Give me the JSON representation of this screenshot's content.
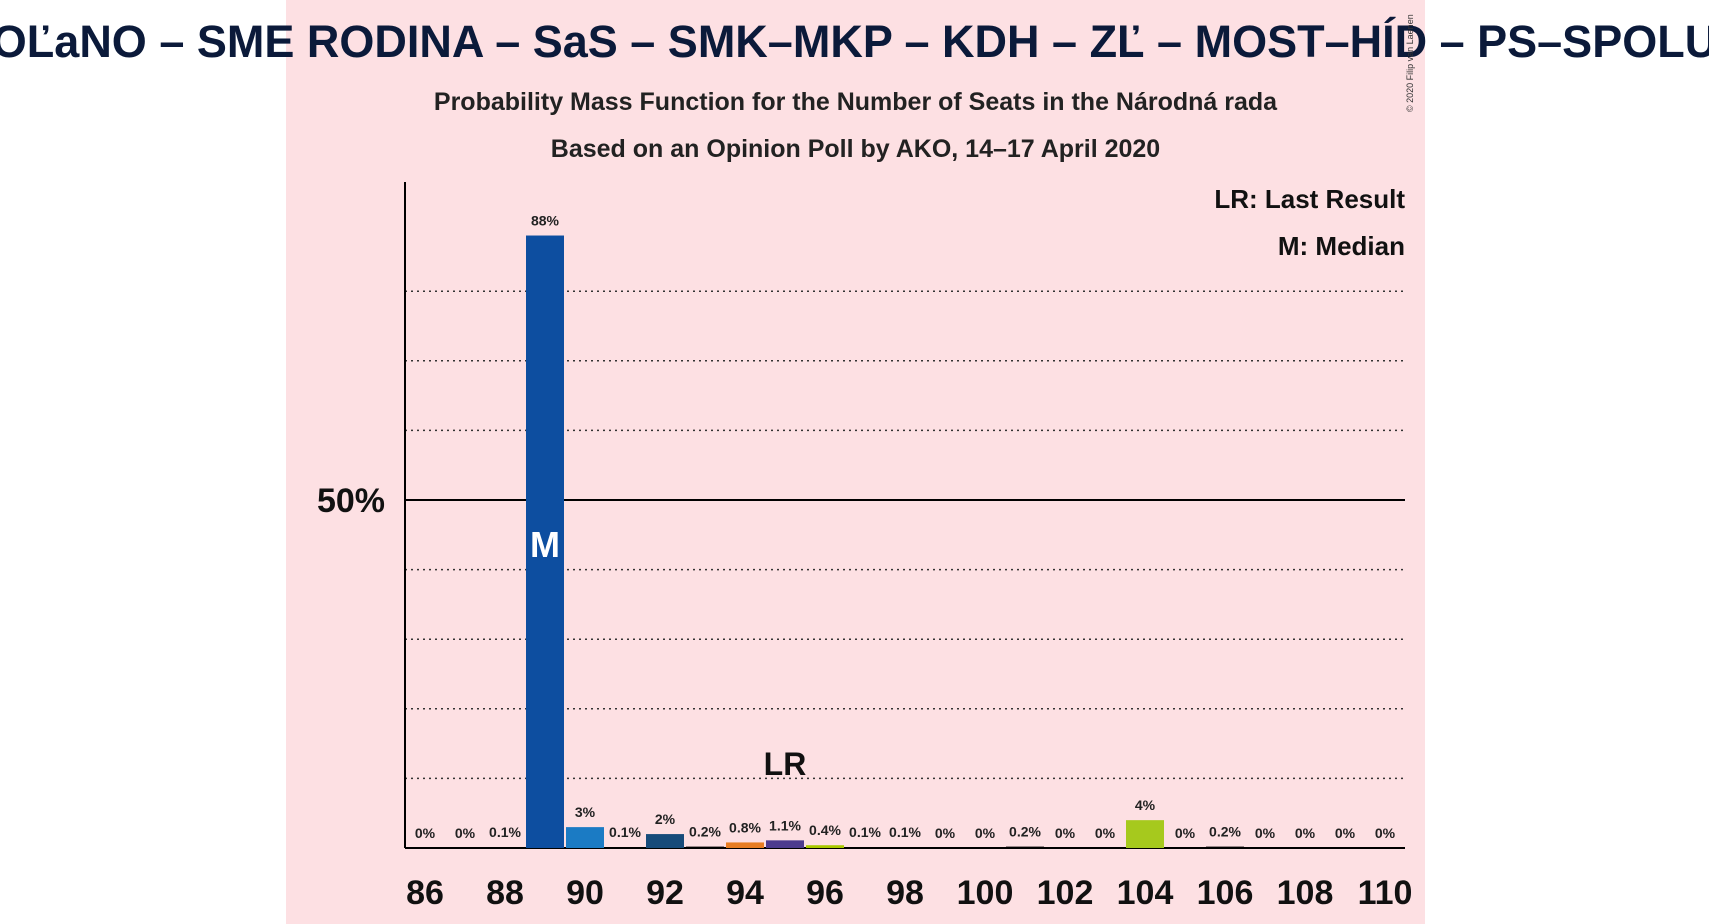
{
  "title": "OĽaNO – SME RODINA – SaS – SMK–MKP – KDH – ZĽ – MOST–HÍD – PS–SPOLU",
  "subtitle1": "Probability Mass Function for the Number of Seats in the Národná rada",
  "subtitle2": "Based on an Opinion Poll by AKO, 14–17 April 2020",
  "legend": {
    "lr": "LR: Last Result",
    "m": "M: Median"
  },
  "copyright": "© 2020 Filip van Laenen",
  "colors": {
    "background": "#fde0e3",
    "axis": "#000000",
    "grid": "#333333"
  },
  "chart_data": {
    "type": "bar",
    "x": [
      86,
      87,
      88,
      89,
      90,
      91,
      92,
      93,
      94,
      95,
      96,
      97,
      98,
      99,
      100,
      101,
      102,
      103,
      104,
      105,
      106,
      107,
      108,
      109,
      110
    ],
    "values": [
      0,
      0,
      0.1,
      88,
      3,
      0.1,
      2,
      0.2,
      0.8,
      1.1,
      0.4,
      0.1,
      0.1,
      0,
      0,
      0.2,
      0,
      0,
      4,
      0,
      0.2,
      0,
      0,
      0,
      0
    ],
    "labels": [
      "0%",
      "0%",
      "0.1%",
      "88%",
      "3%",
      "0.1%",
      "2%",
      "0.2%",
      "0.8%",
      "1.1%",
      "0.4%",
      "0.1%",
      "0.1%",
      "0%",
      "0%",
      "0.2%",
      "0%",
      "0%",
      "4%",
      "0%",
      "0.2%",
      "0%",
      "0%",
      "0%",
      "0%"
    ],
    "bar_colors": [
      "#000000",
      "#000000",
      "#000000",
      "#0d4ea0",
      "#1b7bc4",
      "#000000",
      "#174b7a",
      "#000000",
      "#e87d22",
      "#4d3b8f",
      "#a8c800",
      "#000000",
      "#000000",
      "#000000",
      "#000000",
      "#000000",
      "#000000",
      "#000000",
      "#a6c91d",
      "#000000",
      "#000000",
      "#000000",
      "#000000",
      "#000000",
      "#000000"
    ],
    "x_ticks": [
      86,
      88,
      90,
      92,
      94,
      96,
      98,
      100,
      102,
      104,
      106,
      108,
      110
    ],
    "y_ticks": [
      10,
      20,
      30,
      40,
      50,
      60,
      70,
      80
    ],
    "y_tick_label": "50%",
    "ylim": [
      0,
      96
    ],
    "median": 89,
    "median_label": "M",
    "last_result": 95,
    "last_result_label": "LR"
  }
}
